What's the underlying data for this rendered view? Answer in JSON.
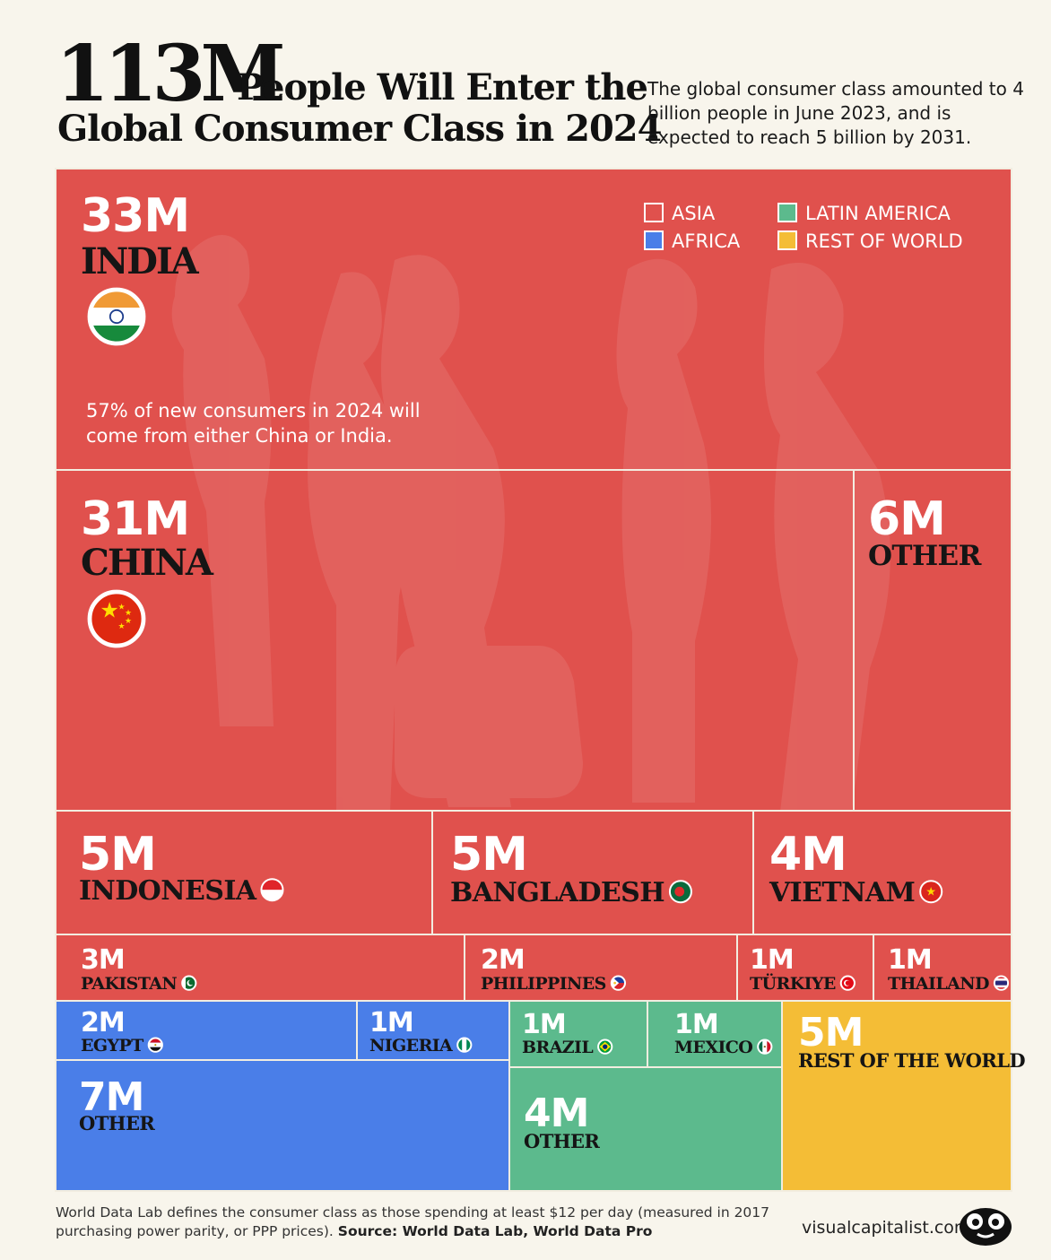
{
  "header": {
    "big_number": "113M",
    "title_line1": "People Will Enter the",
    "title_line2": "Global Consumer Class in 2024",
    "subtitle": "The global consumer class amounted to 4 billion people in June 2023, and is expected to reach 5 billion by 2031."
  },
  "colors": {
    "asia": "#e0514d",
    "africa": "#4a7ee8",
    "latin_america": "#5cba8d",
    "rest_of_world": "#f4bd36",
    "background": "#f8f5ec"
  },
  "chart_data": {
    "type": "treemap",
    "legend": [
      {
        "key": "asia",
        "label": "ASIA"
      },
      {
        "key": "latin_america",
        "label": "LATIN AMERICA"
      },
      {
        "key": "africa",
        "label": "AFRICA"
      },
      {
        "key": "rest_of_world",
        "label": "REST OF WORLD"
      }
    ],
    "legend_position": "top-right",
    "annotation": "57% of new consumers in 2024 will come from either China or India.",
    "cells": [
      {
        "id": "india",
        "region": "asia",
        "value_label": "33M",
        "name": "INDIA",
        "value_millions": 33,
        "flag": "india-flag"
      },
      {
        "id": "china",
        "region": "asia",
        "value_label": "31M",
        "name": "CHINA",
        "value_millions": 31,
        "flag": "china-flag"
      },
      {
        "id": "asia-other",
        "region": "asia",
        "value_label": "6M",
        "name": "OTHER",
        "value_millions": 6
      },
      {
        "id": "indonesia",
        "region": "asia",
        "value_label": "5M",
        "name": "INDONESIA",
        "value_millions": 5,
        "flag": "indonesia-flag"
      },
      {
        "id": "bangladesh",
        "region": "asia",
        "value_label": "5M",
        "name": "BANGLADESH",
        "value_millions": 5,
        "flag": "bangladesh-flag"
      },
      {
        "id": "vietnam",
        "region": "asia",
        "value_label": "4M",
        "name": "VIETNAM",
        "value_millions": 4,
        "flag": "vietnam-flag"
      },
      {
        "id": "pakistan",
        "region": "asia",
        "value_label": "3M",
        "name": "PAKISTAN",
        "value_millions": 3,
        "flag": "pakistan-flag"
      },
      {
        "id": "philippines",
        "region": "asia",
        "value_label": "2M",
        "name": "PHILIPPINES",
        "value_millions": 2,
        "flag": "philippines-flag"
      },
      {
        "id": "turkiye",
        "region": "asia",
        "value_label": "1M",
        "name": "TÜRKIYE",
        "value_millions": 1,
        "flag": "turkiye-flag"
      },
      {
        "id": "thailand",
        "region": "asia",
        "value_label": "1M",
        "name": "THAILAND",
        "value_millions": 1,
        "flag": "thailand-flag"
      },
      {
        "id": "egypt",
        "region": "africa",
        "value_label": "2M",
        "name": "EGYPT",
        "value_millions": 2,
        "flag": "egypt-flag"
      },
      {
        "id": "nigeria",
        "region": "africa",
        "value_label": "1M",
        "name": "NIGERIA",
        "value_millions": 1,
        "flag": "nigeria-flag"
      },
      {
        "id": "africa-other",
        "region": "africa",
        "value_label": "7M",
        "name": "OTHER",
        "value_millions": 7
      },
      {
        "id": "brazil",
        "region": "latin_america",
        "value_label": "1M",
        "name": "BRAZIL",
        "value_millions": 1,
        "flag": "brazil-flag"
      },
      {
        "id": "mexico",
        "region": "latin_america",
        "value_label": "1M",
        "name": "MEXICO",
        "value_millions": 1,
        "flag": "mexico-flag"
      },
      {
        "id": "latam-other",
        "region": "latin_america",
        "value_label": "4M",
        "name": "OTHER",
        "value_millions": 4
      },
      {
        "id": "rest",
        "region": "rest_of_world",
        "value_label": "5M",
        "name": "REST OF THE WORLD",
        "value_millions": 5
      }
    ]
  },
  "footer": {
    "note": "World Data Lab defines the consumer class as those spending at least $12 per day (measured in 2017 purchasing power parity, or PPP prices).",
    "source_label": "Source: World Data Lab, World Data Pro",
    "brand": "visualcapitalist.com",
    "logo_icon": "visual-capitalist-logo-icon"
  }
}
